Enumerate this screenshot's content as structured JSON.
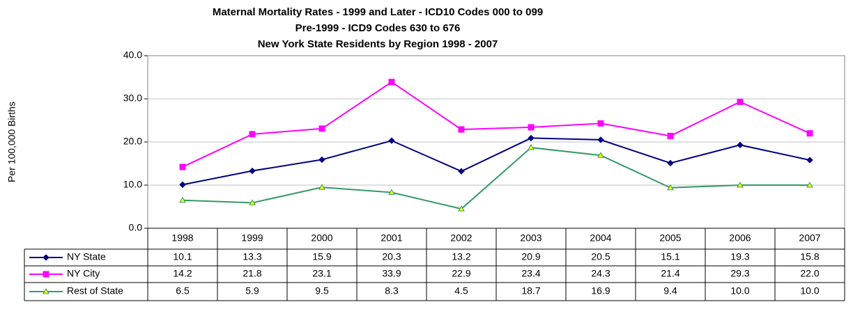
{
  "chart_data": {
    "type": "line",
    "title": [
      "Maternal Mortality Rates - 1999 and Later - ICD10 Codes 000 to 099",
      "Pre-1999 - ICD9 Codes 630 to 676",
      "New York State Residents by Region 1998 - 2007"
    ],
    "y_label": "Per 100,000 Births",
    "categories": [
      "1998",
      "1999",
      "2000",
      "2001",
      "2002",
      "2003",
      "2004",
      "2005",
      "2006",
      "2007"
    ],
    "series": [
      {
        "name": "NY State",
        "color": "#000080",
        "marker": "diamond",
        "marker_color": "#000080",
        "values": [
          10.1,
          13.3,
          15.9,
          20.3,
          13.2,
          20.9,
          20.5,
          15.1,
          19.3,
          15.8
        ],
        "value_labels": [
          "10.1",
          "13.3",
          "15.9",
          "20.3",
          "13.2",
          "20.9",
          "20.5",
          "15.1",
          "19.3",
          "15.8"
        ]
      },
      {
        "name": "NY City",
        "color": "#ff00ff",
        "marker": "square",
        "marker_color": "#ff00ff",
        "values": [
          14.2,
          21.8,
          23.1,
          33.9,
          22.9,
          23.4,
          24.3,
          21.4,
          29.3,
          22.0
        ],
        "value_labels": [
          "14.2",
          "21.8",
          "23.1",
          "33.9",
          "22.9",
          "23.4",
          "24.3",
          "21.4",
          "29.3",
          "22.0"
        ]
      },
      {
        "name": "Rest of State",
        "color": "#339966",
        "marker": "triangle",
        "marker_color": "#ffff00",
        "values": [
          6.5,
          5.9,
          9.5,
          8.3,
          4.5,
          18.7,
          16.9,
          9.4,
          10.0,
          10.0
        ],
        "value_labels": [
          "6.5",
          "5.9",
          "9.5",
          "8.3",
          "4.5",
          "18.7",
          "16.9",
          "9.4",
          "10.0",
          "10.0"
        ]
      }
    ],
    "ylim": [
      0,
      40
    ],
    "yticks": [
      {
        "value": 0,
        "label": "0.0"
      },
      {
        "value": 10,
        "label": "10.0"
      },
      {
        "value": 20,
        "label": "20.0"
      },
      {
        "value": 30,
        "label": "30.0"
      },
      {
        "value": 40,
        "label": "40.0"
      }
    ],
    "grid": true
  }
}
